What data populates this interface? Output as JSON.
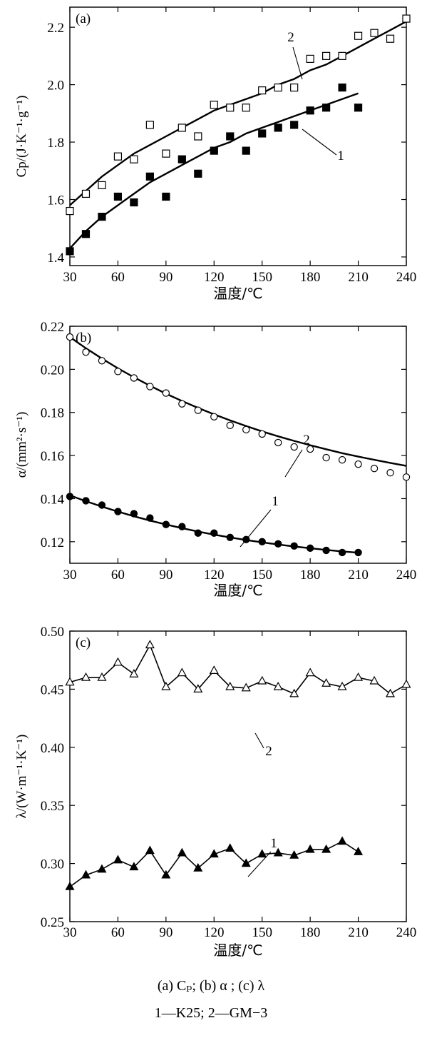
{
  "chart_data": [
    {
      "id": "a",
      "panel_label": "(a)",
      "type": "scatter",
      "xlabel": "温度/℃",
      "ylabel": "Cp/(J·K⁻¹·g⁻¹)",
      "xlim": [
        30,
        240
      ],
      "ylim": [
        1.37,
        2.27
      ],
      "xticks": [
        "30",
        "60",
        "90",
        "120",
        "150",
        "180",
        "210",
        "240"
      ],
      "yticks": [
        "1.4",
        "1.6",
        "1.8",
        "2.0",
        "2.2"
      ],
      "series": [
        {
          "name": "1",
          "marker": "filled-square",
          "x": [
            30,
            40,
            50,
            60,
            70,
            80,
            90,
            100,
            110,
            120,
            130,
            140,
            150,
            160,
            170,
            180,
            190,
            200,
            210
          ],
          "y": [
            1.42,
            1.48,
            1.54,
            1.61,
            1.59,
            1.68,
            1.61,
            1.74,
            1.69,
            1.77,
            1.82,
            1.77,
            1.83,
            1.85,
            1.86,
            1.91,
            1.92,
            1.99,
            1.92
          ],
          "fit_x": [
            30,
            40,
            50,
            60,
            70,
            80,
            90,
            100,
            110,
            120,
            130,
            140,
            150,
            160,
            170,
            180,
            190,
            200,
            210
          ],
          "fit_y": [
            1.43,
            1.49,
            1.54,
            1.58,
            1.62,
            1.66,
            1.69,
            1.72,
            1.75,
            1.78,
            1.8,
            1.83,
            1.85,
            1.87,
            1.89,
            1.91,
            1.93,
            1.95,
            1.97
          ]
        },
        {
          "name": "2",
          "marker": "open-square",
          "x": [
            30,
            40,
            50,
            60,
            70,
            80,
            90,
            100,
            110,
            120,
            130,
            140,
            150,
            160,
            170,
            180,
            190,
            200,
            210,
            220,
            230,
            240
          ],
          "y": [
            1.56,
            1.62,
            1.65,
            1.75,
            1.74,
            1.86,
            1.76,
            1.85,
            1.82,
            1.93,
            1.92,
            1.92,
            1.98,
            1.99,
            1.99,
            2.09,
            2.1,
            2.1,
            2.17,
            2.18,
            2.16,
            2.23
          ],
          "fit_x": [
            30,
            40,
            50,
            60,
            70,
            80,
            90,
            100,
            110,
            120,
            130,
            140,
            150,
            160,
            170,
            180,
            190,
            200,
            210,
            220,
            230,
            240
          ],
          "fit_y": [
            1.58,
            1.63,
            1.68,
            1.72,
            1.76,
            1.79,
            1.82,
            1.85,
            1.88,
            1.91,
            1.93,
            1.95,
            1.97,
            2.0,
            2.02,
            2.05,
            2.07,
            2.1,
            2.13,
            2.16,
            2.19,
            2.22
          ]
        }
      ]
    },
    {
      "id": "b",
      "panel_label": "(b)",
      "type": "scatter",
      "xlabel": "温度/℃",
      "ylabel": "α/(mm²·s⁻¹)",
      "xlim": [
        30,
        240
      ],
      "ylim": [
        0.11,
        0.22
      ],
      "xticks": [
        "30",
        "60",
        "90",
        "120",
        "150",
        "180",
        "210",
        "240"
      ],
      "yticks": [
        "0.12",
        "0.14",
        "0.16",
        "0.18",
        "0.20",
        "0.22"
      ],
      "series": [
        {
          "name": "1",
          "marker": "filled-circle",
          "x": [
            30,
            40,
            50,
            60,
            70,
            80,
            90,
            100,
            110,
            120,
            130,
            140,
            150,
            160,
            170,
            180,
            190,
            200,
            210
          ],
          "y": [
            0.141,
            0.139,
            0.137,
            0.134,
            0.133,
            0.131,
            0.128,
            0.127,
            0.124,
            0.124,
            0.122,
            0.121,
            0.12,
            0.119,
            0.118,
            0.117,
            0.116,
            0.115,
            0.115
          ],
          "fit_x": [
            30,
            40,
            50,
            60,
            70,
            80,
            90,
            100,
            110,
            120,
            130,
            140,
            150,
            160,
            170,
            180,
            190,
            200,
            210
          ],
          "fit_y": [
            0.1415,
            0.1388,
            0.1363,
            0.134,
            0.1318,
            0.1298,
            0.128,
            0.1263,
            0.1247,
            0.1233,
            0.122,
            0.1208,
            0.1197,
            0.1187,
            0.1178,
            0.117,
            0.1162,
            0.1155,
            0.1149
          ]
        },
        {
          "name": "2",
          "marker": "open-circle",
          "x": [
            30,
            40,
            50,
            60,
            70,
            80,
            90,
            100,
            110,
            120,
            130,
            140,
            150,
            160,
            170,
            180,
            190,
            200,
            210,
            220,
            230,
            240
          ],
          "y": [
            0.215,
            0.208,
            0.204,
            0.199,
            0.196,
            0.192,
            0.189,
            0.184,
            0.181,
            0.178,
            0.174,
            0.172,
            0.17,
            0.166,
            0.164,
            0.163,
            0.159,
            0.158,
            0.156,
            0.154,
            0.152,
            0.15
          ],
          "fit_x": [
            30,
            40,
            50,
            60,
            70,
            80,
            90,
            100,
            110,
            120,
            130,
            140,
            150,
            160,
            170,
            180,
            190,
            200,
            210,
            220,
            230,
            240
          ],
          "fit_y": [
            0.215,
            0.2098,
            0.205,
            0.2005,
            0.1963,
            0.1924,
            0.1887,
            0.1853,
            0.1821,
            0.1791,
            0.1763,
            0.1737,
            0.1712,
            0.1689,
            0.1668,
            0.1648,
            0.1629,
            0.1611,
            0.1595,
            0.158,
            0.1566,
            0.1552
          ]
        }
      ]
    },
    {
      "id": "c",
      "panel_label": "(c)",
      "type": "line",
      "xlabel": "温度/℃",
      "ylabel": "λ/(W·m⁻¹·K⁻¹)",
      "xlim": [
        30,
        240
      ],
      "ylim": [
        0.25,
        0.5
      ],
      "xticks": [
        "30",
        "60",
        "90",
        "120",
        "150",
        "180",
        "210",
        "240"
      ],
      "yticks": [
        "0.25",
        "0.30",
        "0.35",
        "0.40",
        "0.45",
        "0.50"
      ],
      "series": [
        {
          "name": "1",
          "marker": "filled-triangle",
          "x": [
            30,
            40,
            50,
            60,
            70,
            80,
            90,
            100,
            110,
            120,
            130,
            140,
            150,
            160,
            170,
            180,
            190,
            200,
            210
          ],
          "y": [
            0.28,
            0.29,
            0.295,
            0.303,
            0.297,
            0.311,
            0.29,
            0.309,
            0.296,
            0.308,
            0.313,
            0.3,
            0.308,
            0.309,
            0.307,
            0.312,
            0.312,
            0.319,
            0.31
          ]
        },
        {
          "name": "2",
          "marker": "open-triangle",
          "x": [
            30,
            40,
            50,
            60,
            70,
            80,
            90,
            100,
            110,
            120,
            130,
            140,
            150,
            160,
            170,
            180,
            190,
            200,
            210,
            220,
            230,
            240
          ],
          "y": [
            0.456,
            0.46,
            0.46,
            0.473,
            0.463,
            0.488,
            0.452,
            0.464,
            0.45,
            0.466,
            0.452,
            0.451,
            0.457,
            0.452,
            0.446,
            0.464,
            0.455,
            0.452,
            0.46,
            0.457,
            0.446,
            0.454
          ]
        }
      ]
    }
  ],
  "caption": {
    "line1": "(a) Cₚ; (b) α ; (c) λ",
    "line2": "1—K25; 2—GM−3"
  }
}
